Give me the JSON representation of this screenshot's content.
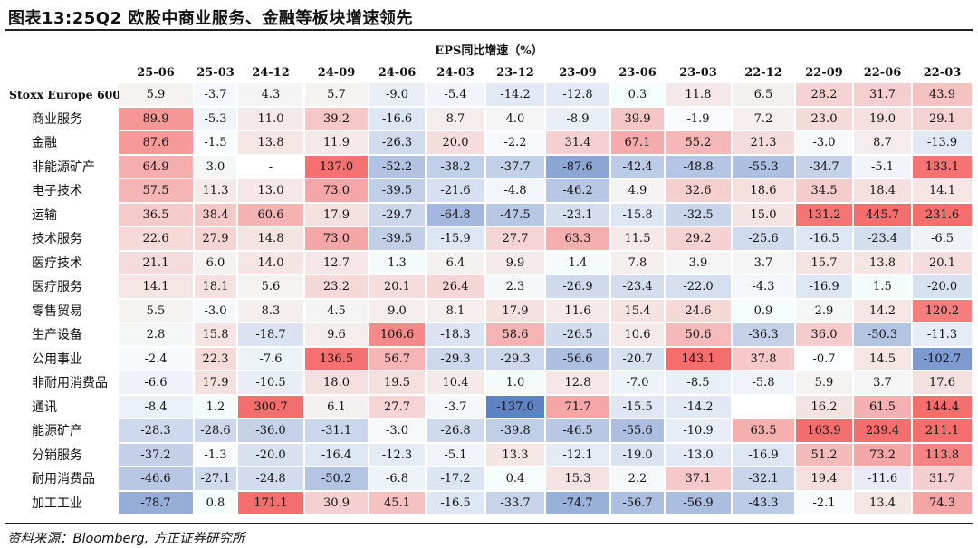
{
  "title": "图表13:25Q2 欧股中商业服务、金融等板块增速领先",
  "header_group": "EPS同比增速（%）",
  "columns": [
    "25-06",
    "25-03",
    "24-12",
    "24-09",
    "24-06",
    "24-03",
    "23-12",
    "23-09",
    "23-06",
    "23-03",
    "22-12",
    "22-09",
    "22-06",
    "22-03"
  ],
  "rows": [
    {
      "label": "Stoxx Europe 600:",
      "values": [
        "5.9",
        "-3.7",
        "4.3",
        "5.7",
        "-9.0",
        "-5.4",
        "-14.2",
        "-12.8",
        "0.3",
        "11.8",
        "6.5",
        "28.2",
        "31.7",
        "43.9"
      ]
    },
    {
      "label": "商业服务",
      "values": [
        "89.9",
        "-5.3",
        "11.0",
        "39.2",
        "-16.6",
        "8.7",
        "4.0",
        "-8.9",
        "39.9",
        "-1.9",
        "7.2",
        "23.0",
        "19.0",
        "29.1"
      ]
    },
    {
      "label": "金融",
      "values": [
        "87.6",
        "-1.5",
        "13.8",
        "11.9",
        "-26.3",
        "20.0",
        "-2.2",
        "31.4",
        "67.1",
        "55.2",
        "21.3",
        "-3.0",
        "8.7",
        "-13.9"
      ]
    },
    {
      "label": "非能源矿产",
      "values": [
        "64.9",
        "3.0",
        "-",
        "137.0",
        "-52.2",
        "-38.2",
        "-37.7",
        "-87.6",
        "-42.4",
        "-48.8",
        "-55.3",
        "-34.7",
        "-5.1",
        "133.1"
      ]
    },
    {
      "label": "电子技术",
      "values": [
        "57.5",
        "11.3",
        "13.0",
        "73.0",
        "-39.5",
        "-21.6",
        "-4.8",
        "-46.2",
        "4.9",
        "32.6",
        "18.6",
        "34.5",
        "18.4",
        "14.1"
      ]
    },
    {
      "label": "运输",
      "values": [
        "36.5",
        "38.4",
        "60.6",
        "17.9",
        "-29.7",
        "-64.8",
        "-47.5",
        "-23.1",
        "-15.8",
        "-32.5",
        "15.0",
        "131.2",
        "445.7",
        "231.6"
      ]
    },
    {
      "label": "技术服务",
      "values": [
        "22.6",
        "27.9",
        "14.8",
        "73.0",
        "-39.5",
        "-15.9",
        "27.7",
        "63.3",
        "11.5",
        "29.2",
        "-25.6",
        "-16.5",
        "-23.4",
        "-6.5"
      ]
    },
    {
      "label": "医疗技术",
      "values": [
        "21.1",
        "6.0",
        "14.0",
        "12.7",
        "1.3",
        "6.4",
        "9.9",
        "1.4",
        "7.8",
        "3.9",
        "3.7",
        "15.7",
        "13.8",
        "20.1"
      ]
    },
    {
      "label": "医疗服务",
      "values": [
        "14.1",
        "18.1",
        "5.6",
        "23.2",
        "20.1",
        "26.4",
        "2.3",
        "-26.9",
        "-23.4",
        "-22.0",
        "-4.3",
        "-16.9",
        "1.5",
        "-20.0"
      ]
    },
    {
      "label": "零售贸易",
      "values": [
        "5.5",
        "-3.0",
        "8.3",
        "4.5",
        "9.0",
        "8.1",
        "17.9",
        "11.6",
        "15.4",
        "24.6",
        "0.9",
        "2.9",
        "14.2",
        "120.2"
      ]
    },
    {
      "label": "生产设备",
      "values": [
        "2.8",
        "15.8",
        "-18.7",
        "9.6",
        "106.6",
        "-18.3",
        "58.6",
        "-26.5",
        "10.6",
        "50.6",
        "-36.3",
        "36.0",
        "-50.3",
        "-11.3"
      ]
    },
    {
      "label": "公用事业",
      "values": [
        "-2.4",
        "22.3",
        "-7.6",
        "136.5",
        "56.7",
        "-29.3",
        "-29.3",
        "-56.6",
        "-20.7",
        "143.1",
        "37.8",
        "-0.7",
        "14.5",
        "-102.7"
      ]
    },
    {
      "label": "非耐用消费品",
      "values": [
        "-6.6",
        "17.9",
        "-10.5",
        "18.0",
        "19.5",
        "10.4",
        "1.0",
        "12.8",
        "-7.0",
        "-8.5",
        "-5.8",
        "5.9",
        "3.7",
        "17.6"
      ]
    },
    {
      "label": "通讯",
      "values": [
        "-8.4",
        "1.2",
        "300.7",
        "6.1",
        "27.7",
        "-3.7",
        "-137.0",
        "71.7",
        "-15.5",
        "-14.2",
        "",
        "16.2",
        "61.5",
        "144.4"
      ]
    },
    {
      "label": "能源矿产",
      "values": [
        "-28.3",
        "-28.6",
        "-36.0",
        "-31.1",
        "-3.0",
        "-26.8",
        "-39.8",
        "-46.5",
        "-55.6",
        "-10.9",
        "63.5",
        "163.9",
        "239.4",
        "211.1"
      ]
    },
    {
      "label": "分销服务",
      "values": [
        "-37.2",
        "-1.3",
        "-20.0",
        "-16.4",
        "-12.3",
        "-5.1",
        "13.3",
        "-12.1",
        "-19.0",
        "-13.0",
        "-16.9",
        "51.2",
        "73.2",
        "113.8"
      ]
    },
    {
      "label": "耐用消费品",
      "values": [
        "-46.6",
        "-27.1",
        "-24.8",
        "-50.2",
        "-6.8",
        "-17.2",
        "0.4",
        "15.3",
        "2.2",
        "37.1",
        "-32.1",
        "19.4",
        "-11.6",
        "31.7"
      ]
    },
    {
      "label": "加工工业",
      "values": [
        "-78.7",
        "0.8",
        "171.1",
        "30.9",
        "45.1",
        "-16.5",
        "-33.7",
        "-74.7",
        "-56.7",
        "-56.9",
        "-43.3",
        "-2.1",
        "13.4",
        "74.3"
      ]
    }
  ],
  "colors": {
    "positive": "#f08080",
    "negative": "#5b7fc1",
    "neutral": "#ffffff"
  },
  "source": "资料来源：Bloomberg, 方正证券研究所"
}
